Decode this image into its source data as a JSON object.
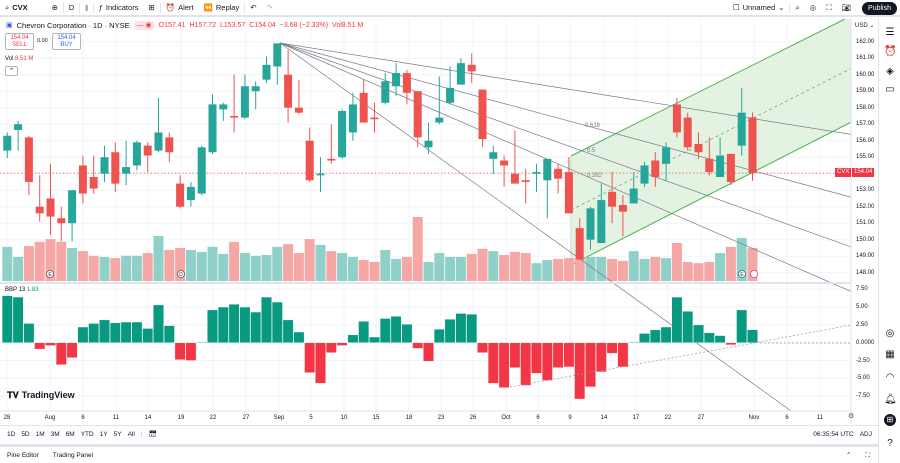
{
  "toolbar": {
    "symbol": "CVX",
    "interval": "D",
    "indicators_label": "Indicators",
    "alert_label": "Alert",
    "replay_label": "Replay",
    "layout_name": "Unnamed",
    "publish_label": "Publish"
  },
  "legend": {
    "title": "Chevron Corporation · 1D · NYSE",
    "open": "O157.41",
    "high": "H157.72",
    "low": "L153.57",
    "close": "C154.04",
    "change": "−3.68 (−2.33%)",
    "vol": "Vol8.51 M",
    "sell_price": "154.04",
    "sell_label": "SELL",
    "spread": "0.00",
    "buy_price": "154.04",
    "buy_label": "BUY",
    "volume_label": "Vol",
    "volume_value": "8.51 M"
  },
  "indicator": {
    "name": "BBP 13",
    "value": "1.83"
  },
  "currency": "USD",
  "price_tag": {
    "symbol": "CVX",
    "price": "154.04"
  },
  "colors": {
    "up": "#26a69a",
    "down": "#ef5350",
    "up_vol": "#8fd1c9",
    "down_vol": "#f5a7a6",
    "bbp_up": "#089981",
    "bbp_down": "#f23645",
    "channel": "#4caf50",
    "channel_fill": "#dff0dc"
  },
  "fib_labels": [
    "0.618",
    "0.5",
    "0.382"
  ],
  "price_axis": [
    "162.00",
    "161.00",
    "160.00",
    "159.00",
    "158.00",
    "157.00",
    "156.00",
    "155.00",
    "153.00",
    "152.00",
    "151.00",
    "150.00",
    "149.00",
    "148.00"
  ],
  "bbp_axis": [
    "7.50",
    "5.00",
    "2.50",
    "0.0000",
    "-2.50",
    "-5.00",
    "-7.50"
  ],
  "time_axis": [
    "28",
    "Aug",
    "6",
    "11",
    "14",
    "19",
    "22",
    "27",
    "Sep",
    "5",
    "10",
    "15",
    "18",
    "23",
    "26",
    "Oct",
    "6",
    "9",
    "14",
    "17",
    "22",
    "27",
    "Nov",
    "6",
    "11"
  ],
  "events": [
    "E",
    "D",
    "E"
  ],
  "ranges": [
    "1D",
    "5D",
    "1M",
    "3M",
    "6M",
    "YTD",
    "1Y",
    "5Y",
    "All"
  ],
  "clock": "06:35:54 UTC",
  "adj_label": "ADJ",
  "panel_tabs": [
    "Pine Editor",
    "Trading Panel"
  ],
  "logo": "TradingView",
  "chart_data": {
    "type": "candlestick",
    "ohlc": [
      [
        155.4,
        156.5,
        154.95,
        156.3
      ],
      [
        156.65,
        157.2,
        155.4,
        157.0
      ],
      [
        156.2,
        156.3,
        152.7,
        153.5
      ],
      [
        152.0,
        153.9,
        151.1,
        151.6
      ],
      [
        152.5,
        154.6,
        150.3,
        151.4
      ],
      [
        151.3,
        152.0,
        149.9,
        151.0
      ],
      [
        151.0,
        153.0,
        149.9,
        153.0
      ],
      [
        154.5,
        155.1,
        152.2,
        152.8
      ],
      [
        153.8,
        155.1,
        152.8,
        153.1
      ],
      [
        154.0,
        155.7,
        153.5,
        155.0
      ],
      [
        155.3,
        155.9,
        152.9,
        153.4
      ],
      [
        154.0,
        156.0,
        153.3,
        154.4
      ],
      [
        154.5,
        156.0,
        154.2,
        155.9
      ],
      [
        155.7,
        155.9,
        154.1,
        155.1
      ],
      [
        155.4,
        158.6,
        155.3,
        156.5
      ],
      [
        156.2,
        156.5,
        154.7,
        155.3
      ],
      [
        153.4,
        153.9,
        151.9,
        152.0
      ],
      [
        152.4,
        153.5,
        152.0,
        153.2
      ],
      [
        152.8,
        155.7,
        152.7,
        155.6
      ],
      [
        155.3,
        158.8,
        155.2,
        158.2
      ],
      [
        157.9,
        158.3,
        157.2,
        158.2
      ],
      [
        157.5,
        160.0,
        156.5,
        157.4
      ],
      [
        157.4,
        160.0,
        157.3,
        159.3
      ],
      [
        159.0,
        159.6,
        157.9,
        159.3
      ],
      [
        159.7,
        161.1,
        159.5,
        160.6
      ],
      [
        160.5,
        161.9,
        159.4,
        161.9
      ],
      [
        160.0,
        161.5,
        157.1,
        158.0
      ],
      [
        158.0,
        159.7,
        157.6,
        157.7
      ],
      [
        156.0,
        156.8,
        153.5,
        153.6
      ],
      [
        153.9,
        155.0,
        152.9,
        154.0
      ],
      [
        154.9,
        157.0,
        154.6,
        154.8
      ],
      [
        155.0,
        157.9,
        154.9,
        157.8
      ],
      [
        156.5,
        158.9,
        156.0,
        158.2
      ],
      [
        158.9,
        159.7,
        157.1,
        157.1
      ],
      [
        157.4,
        158.3,
        156.5,
        157.3
      ],
      [
        158.3,
        160.1,
        158.2,
        159.6
      ],
      [
        159.3,
        160.7,
        158.7,
        160.1
      ],
      [
        160.1,
        160.3,
        158.2,
        158.9
      ],
      [
        159.0,
        159.0,
        155.6,
        156.2
      ],
      [
        155.6,
        157.1,
        155.2,
        156.0
      ],
      [
        157.1,
        159.9,
        157.0,
        157.4
      ],
      [
        158.3,
        160.5,
        158.2,
        159.2
      ],
      [
        159.4,
        161.0,
        159.4,
        160.7
      ],
      [
        160.6,
        161.3,
        159.5,
        160.2
      ],
      [
        159.1,
        159.1,
        155.6,
        156.1
      ],
      [
        154.9,
        155.7,
        154.0,
        155.3
      ],
      [
        154.8,
        155.1,
        153.2,
        154.5
      ],
      [
        154.0,
        156.6,
        153.4,
        153.4
      ],
      [
        153.6,
        154.3,
        152.2,
        153.5
      ],
      [
        154.0,
        154.6,
        152.9,
        154.1
      ],
      [
        153.6,
        154.9,
        151.3,
        154.9
      ],
      [
        154.3,
        154.6,
        152.8,
        153.7
      ],
      [
        154.1,
        155.0,
        151.6,
        151.6
      ],
      [
        150.7,
        151.3,
        148.8,
        148.8
      ],
      [
        150.0,
        152.0,
        149.4,
        151.9
      ],
      [
        149.8,
        153.4,
        149.8,
        152.4
      ],
      [
        152.9,
        154.1,
        151.0,
        152.0
      ],
      [
        152.1,
        152.7,
        150.2,
        151.7
      ],
      [
        152.2,
        154.1,
        152.2,
        153.1
      ],
      [
        153.4,
        154.7,
        153.2,
        154.5
      ],
      [
        154.8,
        155.3,
        153.2,
        153.8
      ],
      [
        154.6,
        155.9,
        153.6,
        155.6
      ],
      [
        158.2,
        158.6,
        156.2,
        156.5
      ],
      [
        157.4,
        157.7,
        155.4,
        155.6
      ],
      [
        155.8,
        156.5,
        154.9,
        155.3
      ],
      [
        154.9,
        156.2,
        153.9,
        154.1
      ],
      [
        153.8,
        156.2,
        153.8,
        155.1
      ],
      [
        155.2,
        155.2,
        153.3,
        153.5
      ],
      [
        155.7,
        159.2,
        155.1,
        157.7
      ],
      [
        157.41,
        157.72,
        153.57,
        154.04
      ]
    ],
    "volume_millions": [
      8.8,
      6.2,
      9.0,
      10.1,
      10.8,
      10.1,
      8.5,
      7.7,
      6.5,
      6.2,
      5.9,
      6.5,
      6.5,
      7.2,
      11.6,
      8.0,
      8.5,
      8.0,
      7.5,
      8.8,
      7.0,
      10.1,
      7.2,
      6.5,
      6.7,
      8.8,
      9.5,
      7.2,
      10.8,
      9.3,
      7.7,
      7.2,
      6.2,
      5.4,
      4.9,
      8.0,
      5.7,
      6.2,
      16.5,
      4.9,
      7.2,
      6.2,
      6.2,
      7.0,
      8.3,
      7.7,
      6.7,
      7.5,
      7.2,
      4.6,
      5.4,
      5.7,
      5.9,
      5.9,
      6.2,
      6.2,
      5.7,
      5.2,
      7.7,
      5.7,
      6.2,
      5.9,
      9.8,
      4.9,
      4.6,
      4.9,
      7.2,
      8.8,
      11.1,
      8.51
    ],
    "bbp": [
      6.6,
      6.4,
      2.7,
      -0.9,
      -0.4,
      -3.1,
      -2.1,
      2.2,
      2.7,
      3.2,
      2.8,
      2.9,
      2.9,
      2.0,
      5.3,
      2.4,
      -2.4,
      -2.5,
      0.1,
      4.6,
      5.0,
      5.4,
      5.0,
      4.3,
      6.4,
      5.7,
      3.2,
      1.5,
      -4.2,
      -5.7,
      -1.4,
      -0.4,
      1.1,
      3.0,
      0.8,
      3.4,
      3.7,
      2.6,
      -0.8,
      -2.6,
      1.9,
      3.3,
      4.1,
      4.0,
      -1.4,
      -5.7,
      -6.3,
      -3.5,
      -6.0,
      -4.3,
      -5.3,
      -3.5,
      -3.4,
      -7.9,
      -6.2,
      -4.1,
      -1.5,
      -3.4,
      0.1,
      1.3,
      1.8,
      2.2,
      6.4,
      4.4,
      2.5,
      1.4,
      1.0,
      -0.3,
      4.6,
      1.83
    ],
    "price_range": [
      147.5,
      162.5
    ],
    "bbp_range": [
      -8.5,
      8.0
    ],
    "grid": true
  }
}
